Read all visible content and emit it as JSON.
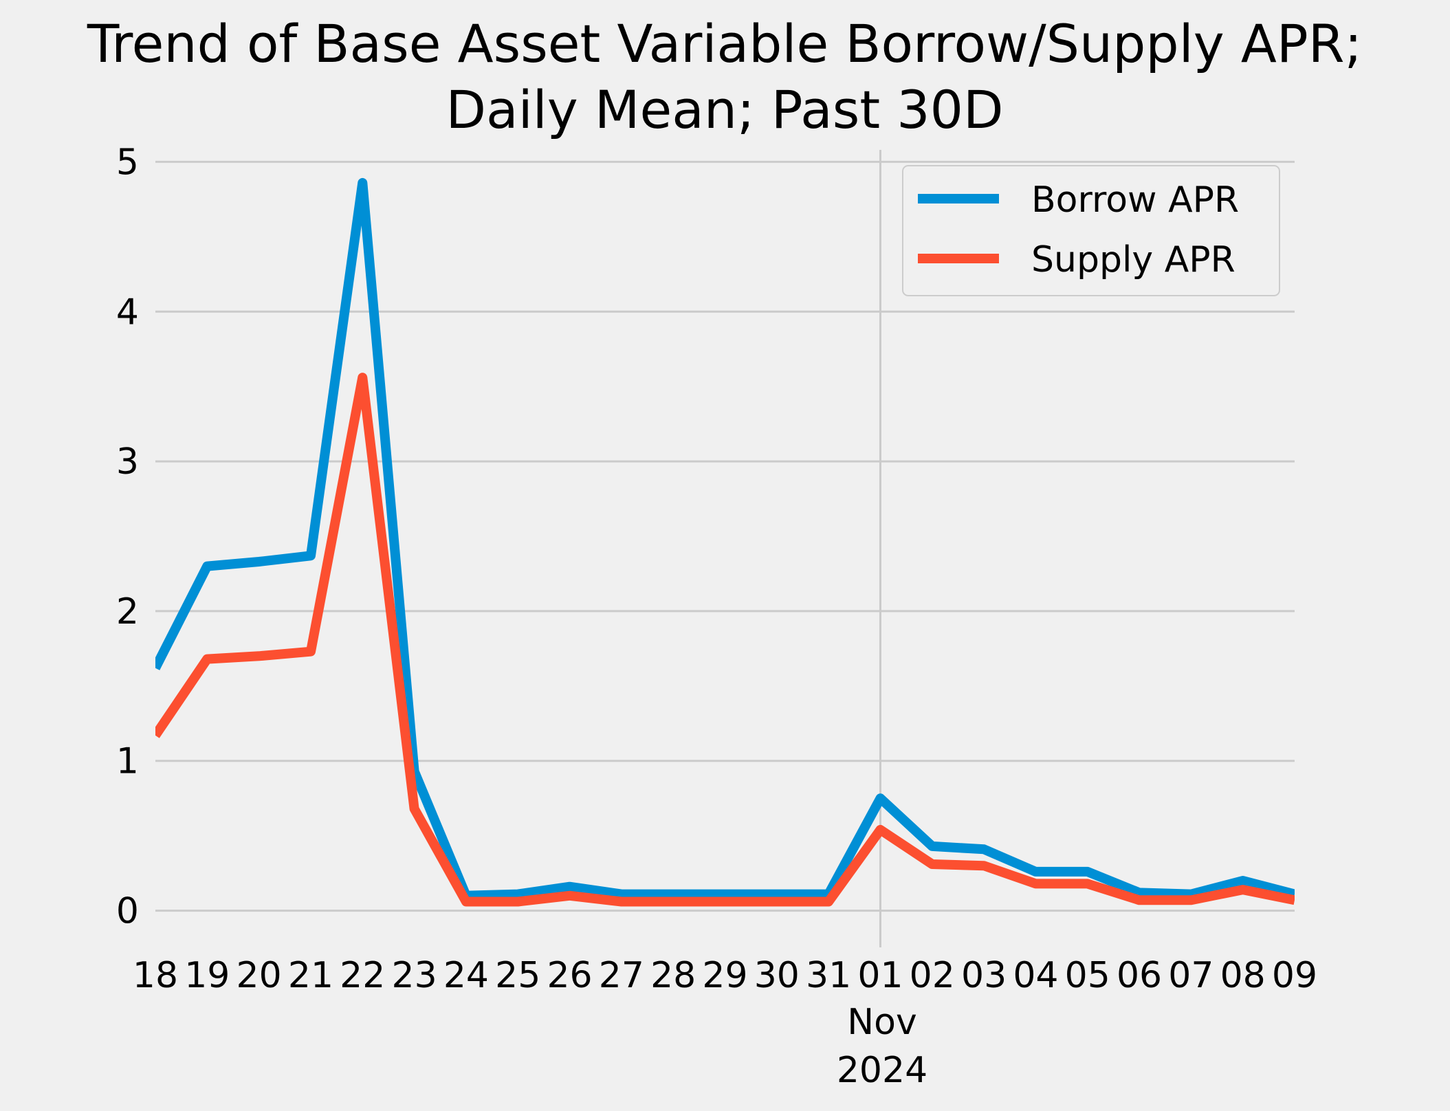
{
  "chart_data": {
    "type": "line",
    "title_line1": "Trend of Base Asset Variable Borrow/Supply APR;",
    "title_line2": "Daily Mean; Past 30D",
    "xlabel": "",
    "ylabel": "",
    "x_dates": [
      "2024-10-18",
      "2024-10-19",
      "2024-10-20",
      "2024-10-21",
      "2024-10-22",
      "2024-10-23",
      "2024-10-24",
      "2024-10-25",
      "2024-10-26",
      "2024-10-27",
      "2024-10-28",
      "2024-10-29",
      "2024-10-30",
      "2024-10-31",
      "2024-11-01",
      "2024-11-02",
      "2024-11-03",
      "2024-11-04",
      "2024-11-05",
      "2024-11-06",
      "2024-11-07",
      "2024-11-08",
      "2024-11-09"
    ],
    "x_tick_labels": [
      "18",
      "19",
      "20",
      "21",
      "22",
      "23",
      "24",
      "25",
      "26",
      "27",
      "28",
      "29",
      "30",
      "31",
      "01",
      "02",
      "03",
      "04",
      "05",
      "06",
      "07",
      "08",
      "09"
    ],
    "x_major_label_month": "Nov",
    "x_major_label_year": "2024",
    "x_major_index": 14,
    "y_ticks": [
      0,
      1,
      2,
      3,
      4,
      5
    ],
    "ylim": [
      -0.08,
      5.08
    ],
    "grid": true,
    "legend_position": "top-right",
    "series": [
      {
        "name": "Borrow APR",
        "color": "#008fd5",
        "values": [
          1.62,
          2.3,
          2.33,
          2.37,
          4.86,
          0.93,
          0.1,
          0.11,
          0.16,
          0.11,
          0.11,
          0.11,
          0.11,
          0.11,
          0.75,
          0.43,
          0.41,
          0.26,
          0.26,
          0.12,
          0.11,
          0.2,
          0.11
        ]
      },
      {
        "name": "Supply APR",
        "color": "#fc4f30",
        "values": [
          1.17,
          1.68,
          1.7,
          1.73,
          3.56,
          0.68,
          0.06,
          0.06,
          0.1,
          0.06,
          0.06,
          0.06,
          0.06,
          0.06,
          0.54,
          0.31,
          0.3,
          0.18,
          0.18,
          0.07,
          0.07,
          0.14,
          0.07
        ]
      }
    ]
  }
}
